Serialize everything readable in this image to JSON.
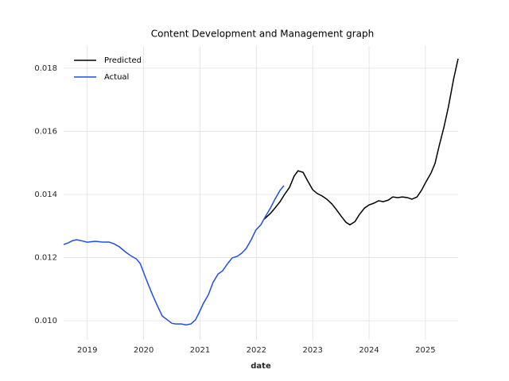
{
  "chart_data": {
    "type": "line",
    "title": "Content Development and Management graph",
    "x_label": "date",
    "xlim": [
      2018.58,
      2025.58
    ],
    "xticks": [
      2019,
      2020,
      2021,
      2022,
      2023,
      2024,
      2025
    ],
    "ylim": [
      0.0094,
      0.0187
    ],
    "yticks": [
      {
        "value": 0.01,
        "label": "0.010"
      },
      0.012,
      0.014,
      0.016,
      0.018
    ],
    "grid": true,
    "legend": "upper left",
    "series": [
      {
        "name": "Predicted",
        "color": "#000000",
        "x": [
          2022.14,
          2022.25,
          2022.33,
          2022.42,
          2022.5,
          2022.59,
          2022.67,
          2022.74,
          2022.83,
          2022.91,
          2023.0,
          2023.08,
          2023.17,
          2023.25,
          2023.34,
          2023.42,
          2023.51,
          2023.59,
          2023.66,
          2023.75,
          2023.83,
          2023.92,
          2024.0,
          2024.08,
          2024.17,
          2024.25,
          2024.34,
          2024.42,
          2024.51,
          2024.59,
          2024.68,
          2024.76,
          2024.85,
          2024.93,
          2025.01,
          2025.1,
          2025.17,
          2025.24,
          2025.33,
          2025.41,
          2025.5,
          2025.58
        ],
        "values": [
          0.01322,
          0.0134,
          0.01357,
          0.01377,
          0.014,
          0.01423,
          0.01458,
          0.01475,
          0.0147,
          0.01443,
          0.01415,
          0.01403,
          0.01395,
          0.01385,
          0.0137,
          0.01352,
          0.0133,
          0.01312,
          0.01304,
          0.01314,
          0.01337,
          0.01357,
          0.01367,
          0.01372,
          0.0138,
          0.01377,
          0.01382,
          0.01392,
          0.0139,
          0.01392,
          0.0139,
          0.01385,
          0.01392,
          0.01413,
          0.0144,
          0.01468,
          0.01498,
          0.01551,
          0.01614,
          0.01679,
          0.01765,
          0.0183
        ]
      },
      {
        "name": "Actual",
        "color": "#1f4ee6",
        "x": [
          2018.58,
          2018.66,
          2018.74,
          2018.81,
          2018.88,
          2019.0,
          2019.14,
          2019.29,
          2019.39,
          2019.47,
          2019.57,
          2019.67,
          2019.77,
          2019.87,
          2019.94,
          2020.01,
          2020.08,
          2020.16,
          2020.25,
          2020.33,
          2020.42,
          2020.5,
          2020.57,
          2020.67,
          2020.75,
          2020.84,
          2020.92,
          2020.99,
          2021.06,
          2021.15,
          2021.23,
          2021.32,
          2021.4,
          2021.49,
          2021.57,
          2021.66,
          2021.74,
          2021.82,
          2021.91,
          2021.99,
          2022.08,
          2022.16,
          2022.25,
          2022.33,
          2022.42,
          2022.49
        ],
        "values": [
          0.012415,
          0.012465,
          0.01254,
          0.012566,
          0.01254,
          0.01249,
          0.012516,
          0.01249,
          0.01249,
          0.01244,
          0.01234,
          0.01219,
          0.01206,
          0.01196,
          0.01181,
          0.01148,
          0.01116,
          0.01081,
          0.01045,
          0.01015,
          0.01003,
          0.00992,
          0.0099,
          0.0099,
          0.00987,
          0.0099,
          0.01003,
          0.01028,
          0.01055,
          0.01083,
          0.01121,
          0.01148,
          0.01158,
          0.01181,
          0.01199,
          0.01204,
          0.01214,
          0.01229,
          0.01257,
          0.01287,
          0.01304,
          0.0133,
          0.01357,
          0.01385,
          0.01413,
          0.01428
        ]
      }
    ]
  }
}
